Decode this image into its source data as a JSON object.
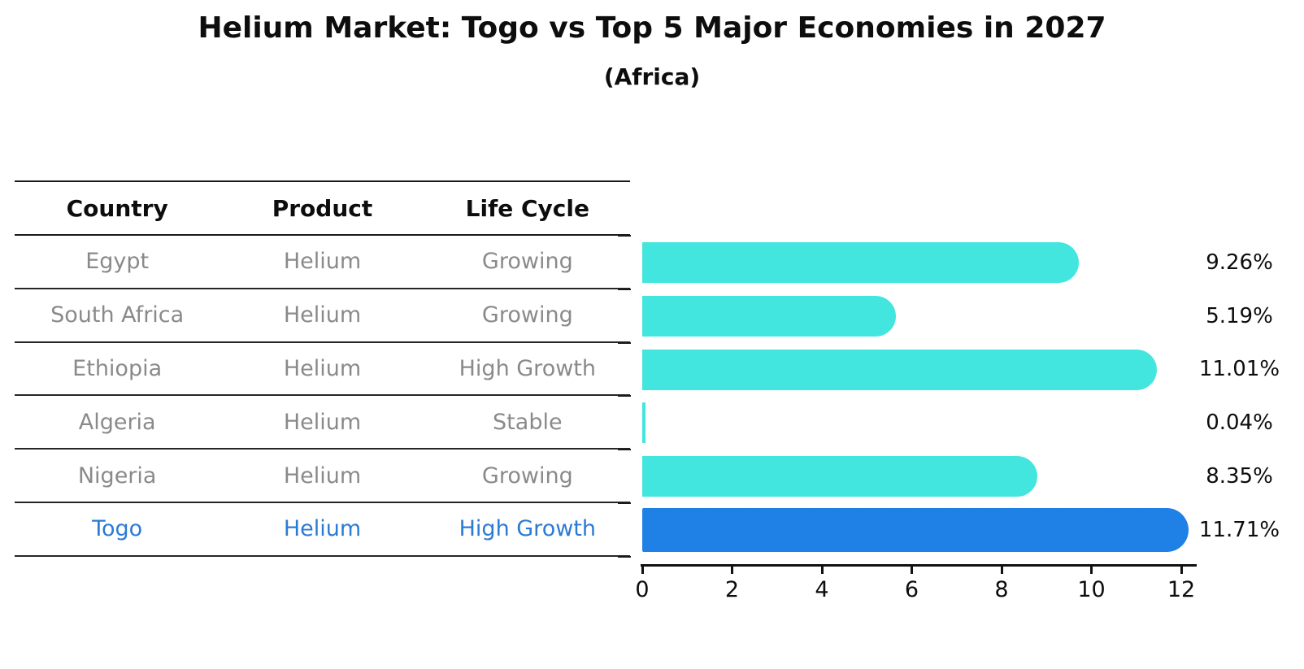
{
  "title": "Helium Market: Togo vs Top 5 Major Economies in 2027",
  "subtitle": "(Africa)",
  "table": {
    "headers": [
      "Country",
      "Product",
      "Life Cycle"
    ],
    "rows": [
      {
        "country": "Egypt",
        "product": "Helium",
        "life_cycle": "Growing",
        "highlight": false
      },
      {
        "country": "South Africa",
        "product": "Helium",
        "life_cycle": "Growing",
        "highlight": false
      },
      {
        "country": "Ethiopia",
        "product": "Helium",
        "life_cycle": "High Growth",
        "highlight": false
      },
      {
        "country": "Algeria",
        "product": "Helium",
        "life_cycle": "Stable",
        "highlight": false
      },
      {
        "country": "Nigeria",
        "product": "Helium",
        "life_cycle": "Growing",
        "highlight": false
      },
      {
        "country": "Togo",
        "product": "Helium",
        "life_cycle": "High Growth",
        "highlight": true
      }
    ]
  },
  "chart_data": {
    "type": "bar",
    "orientation": "horizontal",
    "title": "Helium Market: Togo vs Top 5 Major Economies in 2027",
    "subtitle": "(Africa)",
    "categories": [
      "Egypt",
      "South Africa",
      "Ethiopia",
      "Algeria",
      "Nigeria",
      "Togo"
    ],
    "values": [
      9.26,
      5.19,
      11.01,
      0.04,
      8.35,
      11.71
    ],
    "labels": [
      "9.26%",
      "5.19%",
      "11.01%",
      "0.04%",
      "8.35%",
      "11.71%"
    ],
    "xlim": [
      0,
      12
    ],
    "x_ticks": [
      0,
      2,
      4,
      6,
      8,
      10,
      12
    ],
    "highlight_index": 5,
    "grid": false,
    "legend": false,
    "value_label_position": "right"
  },
  "colors": {
    "bar_cyan": "#43e6de",
    "bar_blue": "#1f80e6",
    "accent_blue": "#2b7bd4",
    "text_gray": "#8a8a8a",
    "text_dark": "#0d0d0d",
    "axis_color": "#111111"
  }
}
